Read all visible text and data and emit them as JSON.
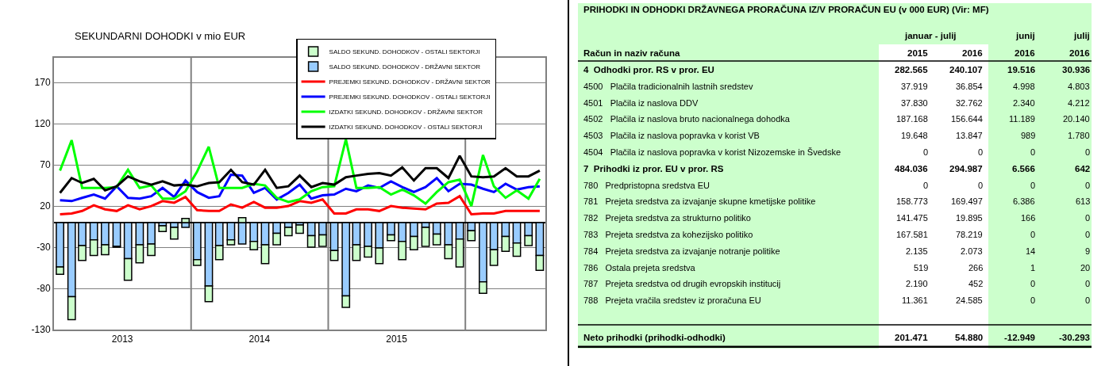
{
  "chart_data": [
    {
      "type": "bar",
      "title": "SEKUNDARNI DOHODKI v mio EUR",
      "stacked": true,
      "x": [
        "2013-01",
        "2013-02",
        "2013-03",
        "2013-04",
        "2013-05",
        "2013-06",
        "2013-07",
        "2013-08",
        "2013-09",
        "2013-10",
        "2013-11",
        "2013-12",
        "2014-01",
        "2014-02",
        "2014-03",
        "2014-04",
        "2014-05",
        "2014-06",
        "2014-07",
        "2014-08",
        "2014-09",
        "2014-10",
        "2014-11",
        "2014-12",
        "2015-01",
        "2015-02",
        "2015-03",
        "2015-04",
        "2015-05",
        "2015-06",
        "2015-07",
        "2015-08",
        "2015-09",
        "2015-10",
        "2015-11",
        "2015-12",
        "2016-01",
        "2016-02",
        "2016-03",
        "2016-04",
        "2016-05",
        "2016-06",
        "2016-07"
      ],
      "xlim": [
        "2012-12-16",
        "2016-07-16"
      ],
      "xticks": [
        {
          "value": "2013-06-16",
          "label": "2013"
        },
        {
          "value": "2014-06-16",
          "label": "2014"
        },
        {
          "value": "2015-06-16",
          "label": "2015"
        },
        {
          "value": "2013-12-16",
          "label": null
        },
        {
          "value": "2014-12-16",
          "label": null
        },
        {
          "value": "2015-12-16",
          "label": null
        }
      ],
      "ylim": [
        -130,
        200
      ],
      "yticks": [
        -130,
        -80,
        -30,
        20,
        70,
        120,
        170
      ],
      "grid": true,
      "legend": "top right",
      "series": [
        {
          "name": "SALDO SEKUND. DOHODKOV - DRŽAVNI SEKTOR",
          "type": "bar",
          "color": "#99ccff",
          "values": [
            -54,
            -90,
            -28,
            -21,
            -27,
            -29,
            -44,
            -27,
            -26,
            -4,
            -6,
            -6,
            -45,
            -77,
            -28,
            -21,
            -26,
            -23,
            -27,
            -13,
            -6,
            -3,
            -16,
            -15,
            -34,
            -89,
            -27,
            -29,
            -31,
            -15,
            -23,
            -17,
            -6,
            -14,
            -27,
            -20,
            -10,
            -72,
            -33,
            -17,
            -25,
            -16,
            -40
          ]
        },
        {
          "name": "SALDO SEKUND. DOHODKOV - OSTALI SEKTORJI",
          "type": "bar",
          "color": "#ccffcc",
          "values": [
            -9,
            -28,
            -18,
            -19,
            -12,
            -1,
            -26,
            -22,
            -14,
            -7,
            -14,
            5,
            -7,
            -19,
            -17,
            -6,
            6,
            -10,
            -23,
            -14,
            -10,
            -10,
            -14,
            -14,
            -12,
            -14,
            -19,
            -13,
            -19,
            -7,
            -22,
            -16,
            -23,
            -13,
            -17,
            -34,
            -12,
            -14,
            -19,
            -18,
            -16,
            -12,
            -18
          ]
        },
        {
          "name": "PREJEMKI SEKUND. DOHODKOV - DRŽAVNI SEKTOR",
          "type": "line",
          "color": "#ff0000",
          "values": [
            10,
            11,
            14,
            21,
            16,
            14,
            21,
            16,
            20,
            26,
            24,
            31,
            15,
            14,
            14,
            22,
            18,
            25,
            18,
            18,
            20,
            26,
            24,
            28,
            11,
            11,
            16,
            16,
            14,
            20,
            18,
            17,
            16,
            23,
            24,
            32,
            10,
            11,
            11,
            14,
            14,
            14,
            14
          ]
        },
        {
          "name": "PREJEMKI SEKUND. DOHODKOV - OSTALI SEKTORJI",
          "type": "line",
          "color": "#0000ff",
          "values": [
            27,
            26,
            30,
            34,
            29,
            44,
            30,
            29,
            32,
            42,
            31,
            51,
            37,
            30,
            32,
            58,
            57,
            36,
            42,
            28,
            36,
            46,
            29,
            33,
            34,
            41,
            38,
            45,
            42,
            50,
            43,
            37,
            43,
            54,
            38,
            47,
            46,
            41,
            37,
            47,
            40,
            43,
            44
          ]
        },
        {
          "name": "IZDATKI SEKUND. DOHODKOV - DRŽAVNI SEKTOR",
          "type": "line",
          "color": "#00ff00",
          "values": [
            63,
            100,
            42,
            42,
            42,
            43,
            64,
            42,
            45,
            29,
            29,
            38,
            62,
            92,
            42,
            42,
            42,
            47,
            45,
            30,
            25,
            28,
            38,
            43,
            44,
            101,
            42,
            42,
            43,
            34,
            40,
            33,
            23,
            37,
            49,
            52,
            20,
            82,
            44,
            30,
            39,
            29,
            53
          ]
        },
        {
          "name": "IZDATKI SEKUND. DOHODKOV - OSTALI SEKTORJI",
          "type": "line",
          "color": "#000000",
          "values": [
            36,
            54,
            48,
            53,
            39,
            44,
            56,
            50,
            46,
            50,
            45,
            46,
            44,
            48,
            49,
            64,
            49,
            46,
            64,
            42,
            44,
            57,
            43,
            48,
            46,
            55,
            57,
            59,
            60,
            57,
            67,
            51,
            66,
            66,
            54,
            81,
            56,
            55,
            56,
            66,
            56,
            56,
            63
          ]
        }
      ]
    },
    {
      "type": "other",
      "title": "PRIHODKI IN ODHODKI DRŽAVNEGA PRORAČUNA IZ/V PRORAČUN EU (v 000 EUR) (Vir: MF)",
      "annotations": [
        "Račun in naziv računa",
        "januar - julij",
        "junij",
        "julij"
      ],
      "categories": [
        "2015",
        "2016",
        "2016",
        "2016"
      ],
      "y_categories": [
        "4",
        "4500",
        "4501",
        "4502",
        "4503",
        "4504",
        "7",
        "780",
        "781",
        "782",
        "783",
        "784",
        "786",
        "787",
        "788",
        null,
        null
      ],
      "y2_categories": [
        "Odhodki pror. RS v pror. EU",
        "Plačila tradicionalnih lastnih sredstev",
        "Plačila iz naslova DDV",
        "Plačila iz naslova bruto nacionalnega dohodka",
        "Plačila iz naslova popravka v korist VB",
        "Plačila iz naslova popravka v korist Nizozemske in Švedske",
        "Prihodki iz pror. EU v pror. RS",
        "Predpristopna sredstva EU",
        "Prejeta sredstva za izvajanje skupne kmetijske politike",
        "Prejeta sredstva za strukturno politiko",
        "Prejeta sredstva za kohezijsko politiko",
        "Prejeta sredstva za izvajanje notranje politike",
        "Ostala prejeta sredstva",
        "Prejeta sredstva od drugih evropskih institucij",
        "Prejeta vračila sredstev iz proračuna EU",
        null,
        "Neto prihodki (prihodki-odhodki)"
      ],
      "cell_labels": [
        [
          "282.565",
          "240.107",
          "19.516",
          "30.936"
        ],
        [
          "37.919",
          "36.854",
          "4.998",
          "4.803"
        ],
        [
          "37.830",
          "32.762",
          "2.340",
          "4.212"
        ],
        [
          "187.168",
          "156.644",
          "11.189",
          "20.140"
        ],
        [
          "19.648",
          "13.847",
          "989",
          "1.780"
        ],
        [
          "0",
          "0",
          "0",
          "0"
        ],
        [
          "484.036",
          "294.987",
          "6.566",
          "642"
        ],
        [
          "0",
          "0",
          "0",
          "0"
        ],
        [
          "158.773",
          "169.497",
          "6.386",
          "613"
        ],
        [
          "141.475",
          "19.895",
          "166",
          "0"
        ],
        [
          "167.581",
          "78.219",
          "0",
          "0"
        ],
        [
          "2.135",
          "2.073",
          "14",
          "9"
        ],
        [
          "519",
          "266",
          "1",
          "20"
        ],
        [
          "2.190",
          "452",
          "0",
          "0"
        ],
        [
          "11.361",
          "24.585",
          "0",
          "0"
        ],
        [
          null,
          null,
          null,
          null
        ],
        [
          "201.471",
          "54.880",
          "-12.949",
          "-30.293"
        ]
      ]
    }
  ]
}
